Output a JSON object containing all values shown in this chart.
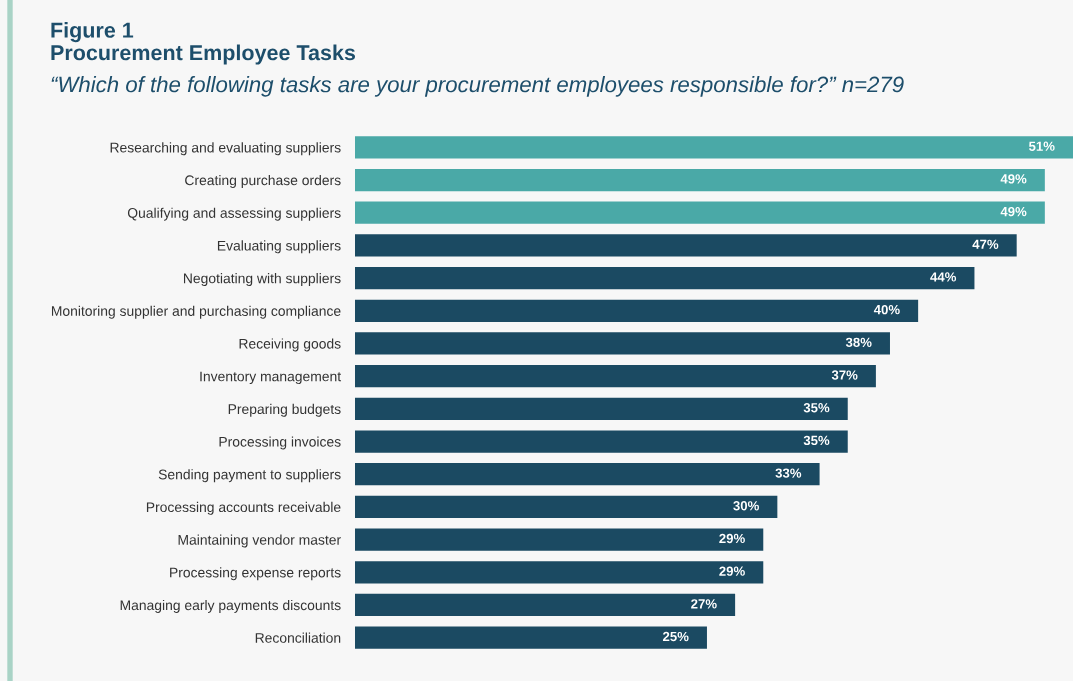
{
  "chart_data": {
    "type": "bar",
    "orientation": "horizontal",
    "title": "Figure 1\nProcurement Employee Tasks",
    "subtitle": "“Which of the following tasks are your procurement employees responsible for?” n=279",
    "categories": [
      "Researching and evaluating suppliers",
      "Creating purchase orders",
      "Qualifying and assessing suppliers",
      "Evaluating suppliers",
      "Negotiating with suppliers",
      "Monitoring supplier and purchasing compliance",
      "Receiving goods",
      "Inventory management",
      "Preparing budgets",
      "Processing invoices",
      "Sending payment to suppliers",
      "Processing accounts receivable",
      "Maintaining vendor master",
      "Processing expense reports",
      "Managing early payments discounts",
      "Reconciliation"
    ],
    "values": [
      51,
      49,
      49,
      47,
      44,
      40,
      38,
      37,
      35,
      35,
      33,
      30,
      29,
      29,
      27,
      25
    ],
    "colors": [
      "#4aa9a7",
      "#4aa9a7",
      "#4aa9a7",
      "#1b4a62",
      "#1b4a62",
      "#1b4a62",
      "#1b4a62",
      "#1b4a62",
      "#1b4a62",
      "#1b4a62",
      "#1b4a62",
      "#1b4a62",
      "#1b4a62",
      "#1b4a62",
      "#1b4a62",
      "#1b4a62"
    ],
    "value_labels": [
      "51%",
      "49%",
      "49%",
      "47%",
      "44%",
      "40%",
      "38%",
      "37%",
      "35%",
      "35%",
      "33%",
      "30%",
      "29%",
      "29%",
      "27%",
      "25%"
    ],
    "grid": false,
    "legend": false
  }
}
